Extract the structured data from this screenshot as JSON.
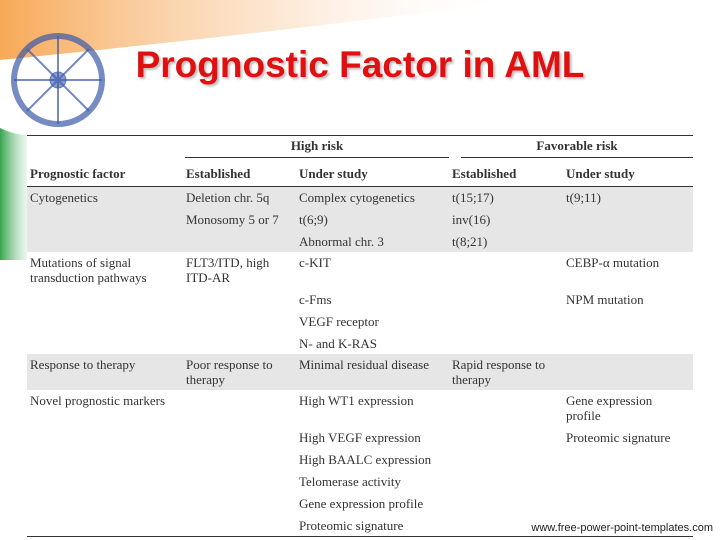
{
  "title": "Prognostic Factor in AML",
  "table": {
    "groups": [
      "High risk",
      "Favorable risk"
    ],
    "columns": [
      "Prognostic factor",
      "Established",
      "Under study",
      "Established",
      "Under study"
    ],
    "rows": [
      [
        [
          "Cytogenetics"
        ],
        [
          "Deletion chr. 5q",
          "Monosomy 5 or 7"
        ],
        [
          "Complex cytogenetics",
          "t(6;9)",
          "Abnormal chr. 3"
        ],
        [
          "t(15;17)",
          "inv(16)",
          "t(8;21)"
        ],
        [
          "t(9;11)"
        ]
      ],
      [
        [
          "Mutations of signal transduction pathways"
        ],
        [
          "FLT3/ITD, high ITD-AR"
        ],
        [
          "c-KIT",
          "c-Fms",
          "VEGF receptor",
          "N- and K-RAS"
        ],
        [],
        [
          "CEBP-α mutation",
          "NPM mutation"
        ]
      ],
      [
        [
          "Response to therapy"
        ],
        [
          "Poor response to therapy"
        ],
        [
          "Minimal residual disease"
        ],
        [
          "Rapid response to therapy"
        ],
        []
      ],
      [
        [
          "Novel prognostic markers"
        ],
        [],
        [
          "High WT1 expression",
          "High VEGF expression",
          "High BAALC expression",
          "Telomerase activity",
          "Gene expression profile",
          "Proteomic signature"
        ],
        [],
        [
          "Gene expression profile",
          "Proteomic signature"
        ]
      ]
    ]
  },
  "footer": "www.free-power-point-templates.com"
}
